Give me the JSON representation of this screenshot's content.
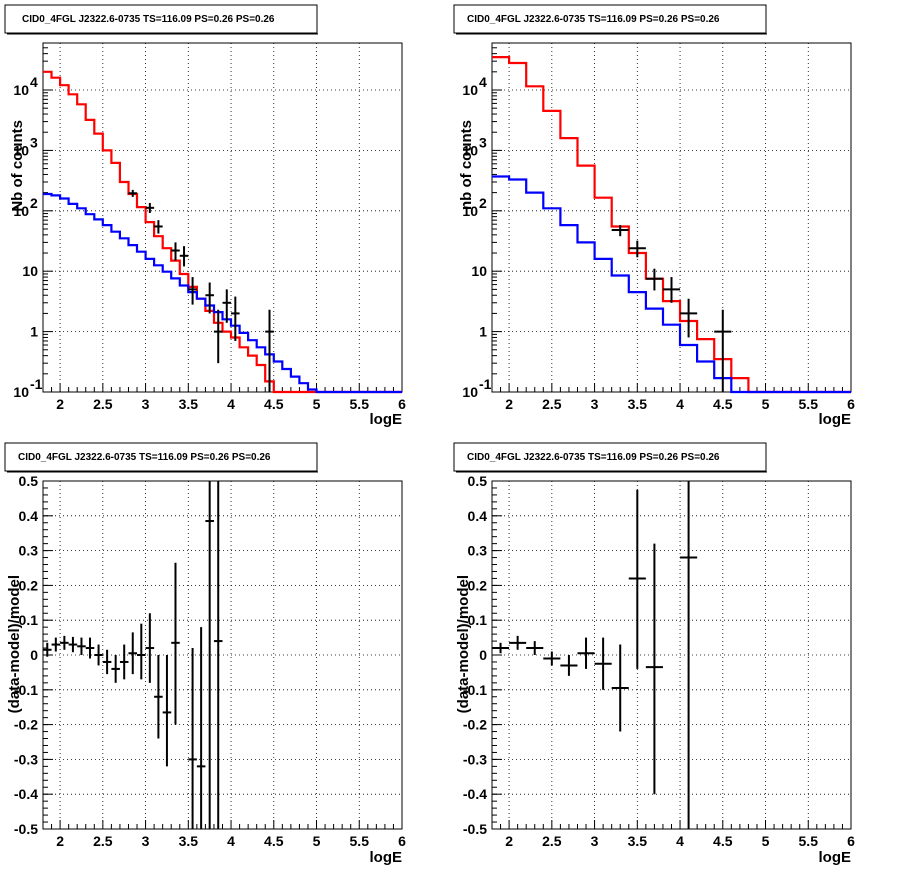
{
  "chart_data": [
    {
      "type": "line",
      "title": "CID0_4FGL J2322.6-0735 TS=116.09 PS=0.26 PS=0.26",
      "xlabel": "logE",
      "ylabel": "Nb of counts",
      "xlim": [
        1.8,
        6.0
      ],
      "ylim": [
        0.1,
        60000
      ],
      "yscale": "log",
      "grid": true,
      "xticks": [
        "2",
        "2.5",
        "3",
        "3.5",
        "4",
        "4.5",
        "5",
        "5.5",
        "6"
      ],
      "yticks": [
        "10^-1",
        "1",
        "10",
        "10^2",
        "10^3",
        "10^4"
      ],
      "bin_edges": [
        1.8,
        1.9,
        2.0,
        2.1,
        2.2,
        2.3,
        2.4,
        2.5,
        2.6,
        2.7,
        2.8,
        2.9,
        3.0,
        3.1,
        3.2,
        3.3,
        3.4,
        3.5,
        3.6,
        3.7,
        3.8,
        3.9,
        4.0,
        4.1,
        4.2,
        4.3,
        4.4,
        4.5,
        4.6,
        4.7,
        4.8,
        4.9,
        5.0,
        5.1,
        5.2,
        5.3,
        5.4,
        5.5,
        5.6,
        5.7,
        5.8,
        5.9,
        6.0
      ],
      "series": [
        {
          "role": "total-model",
          "color": "#ff0000",
          "values": [
            20000,
            16000,
            12000,
            8500,
            5800,
            3200,
            1900,
            1000,
            620,
            300,
            190,
            115,
            65,
            38,
            24,
            15,
            9,
            5.5,
            3.5,
            2.2,
            1.4,
            1.0,
            0.8,
            0.55,
            0.4,
            0.28,
            0.15,
            0.1,
            0.1,
            0.1,
            0.1,
            0.1,
            0.1,
            0.1,
            0.1,
            0.1,
            0.1,
            0.1,
            0.1,
            0.1,
            0.1,
            0.1
          ]
        },
        {
          "role": "background-model",
          "color": "#0000ff",
          "values": [
            190,
            180,
            160,
            130,
            110,
            88,
            72,
            58,
            45,
            35,
            27,
            21,
            16,
            12.5,
            9.8,
            7.6,
            5.8,
            4.5,
            3.5,
            2.7,
            2.1,
            1.6,
            1.25,
            0.95,
            0.72,
            0.55,
            0.42,
            0.32,
            0.24,
            0.18,
            0.14,
            0.11,
            0.1,
            0.1,
            0.1,
            0.1,
            0.1,
            0.1,
            0.1,
            0.1,
            0.1,
            0.1
          ]
        },
        {
          "role": "data",
          "color": "#000000",
          "points": [
            {
              "x": 2.85,
              "y": 195,
              "lo": 170,
              "hi": 222
            },
            {
              "x": 3.05,
              "y": 112,
              "lo": 92,
              "hi": 135
            },
            {
              "x": 3.15,
              "y": 55,
              "lo": 42,
              "hi": 70
            },
            {
              "x": 3.35,
              "y": 22,
              "lo": 15,
              "hi": 30
            },
            {
              "x": 3.45,
              "y": 18,
              "lo": 12,
              "hi": 26
            },
            {
              "x": 3.55,
              "y": 5,
              "lo": 2.8,
              "hi": 8
            },
            {
              "x": 3.75,
              "y": 4,
              "lo": 2,
              "hi": 6.5
            },
            {
              "x": 3.85,
              "y": 1.0,
              "lo": 0.3,
              "hi": 2.3
            },
            {
              "x": 3.95,
              "y": 3,
              "lo": 1.4,
              "hi": 5
            },
            {
              "x": 4.05,
              "y": 2,
              "lo": 0.7,
              "hi": 3.8
            },
            {
              "x": 4.45,
              "y": 1,
              "lo": 0.1,
              "hi": 2.3
            }
          ]
        }
      ]
    },
    {
      "type": "line",
      "title": "CID0_4FGL J2322.6-0735 TS=116.09 PS=0.26 PS=0.26",
      "xlabel": "logE",
      "ylabel": "nb of counts",
      "xlim": [
        1.8,
        6.0
      ],
      "ylim": [
        0.1,
        60000
      ],
      "yscale": "log",
      "grid": true,
      "xticks": [
        "2",
        "2.5",
        "3",
        "3.5",
        "4",
        "4.5",
        "5",
        "5.5",
        "6"
      ],
      "yticks": [
        "10^-1",
        "1",
        "10",
        "10^2",
        "10^3",
        "10^4"
      ],
      "bin_edges": [
        1.8,
        2.0,
        2.2,
        2.4,
        2.6,
        2.8,
        3.0,
        3.2,
        3.4,
        3.6,
        3.8,
        4.0,
        4.2,
        4.4,
        4.6,
        4.8,
        5.0,
        5.2,
        5.4,
        5.6,
        5.8,
        6.0
      ],
      "series": [
        {
          "role": "total-model",
          "color": "#ff0000",
          "values": [
            35000,
            28000,
            11500,
            4500,
            1600,
            560,
            165,
            55,
            20,
            7.5,
            3.2,
            1.5,
            0.75,
            0.35,
            0.17,
            0.1,
            0.1,
            0.1,
            0.1,
            0.1,
            0.1
          ]
        },
        {
          "role": "background-model",
          "color": "#0000ff",
          "values": [
            370,
            330,
            200,
            110,
            58,
            30,
            16,
            8.5,
            4.5,
            2.4,
            1.3,
            0.6,
            0.32,
            0.17,
            0.1,
            0.1,
            0.1,
            0.1,
            0.1,
            0.1,
            0.1
          ]
        },
        {
          "role": "data",
          "color": "#000000",
          "points": [
            {
              "x": 3.3,
              "y": 48,
              "lo": 38,
              "hi": 58
            },
            {
              "x": 3.5,
              "y": 24,
              "lo": 17,
              "hi": 32
            },
            {
              "x": 3.7,
              "y": 7.5,
              "lo": 4.8,
              "hi": 11
            },
            {
              "x": 3.9,
              "y": 5,
              "lo": 3,
              "hi": 8
            },
            {
              "x": 4.1,
              "y": 2,
              "lo": 0.8,
              "hi": 3.5
            },
            {
              "x": 4.5,
              "y": 1,
              "lo": 0.1,
              "hi": 2.3
            }
          ]
        }
      ]
    },
    {
      "type": "scatter",
      "title": "CID0_4FGL J2322.6-0735 TS=116.09 PS=0.26 PS=0.26",
      "xlabel": "logE",
      "ylabel": "(data-model)/model",
      "xlim": [
        1.8,
        6.0
      ],
      "ylim": [
        -0.5,
        0.5
      ],
      "grid": true,
      "xticks": [
        "2",
        "2.5",
        "3",
        "3.5",
        "4",
        "4.5",
        "5",
        "5.5",
        "6"
      ],
      "yticks": [
        "-0.5",
        "-0.4",
        "-0.3",
        "-0.2",
        "-0.1",
        "0",
        "0.1",
        "0.2",
        "0.3",
        "0.4",
        "0.5"
      ],
      "points": [
        {
          "x": 1.85,
          "y": 0.015,
          "lo": -0.005,
          "hi": 0.035
        },
        {
          "x": 1.95,
          "y": 0.03,
          "lo": 0.01,
          "hi": 0.05
        },
        {
          "x": 2.05,
          "y": 0.035,
          "lo": 0.015,
          "hi": 0.055
        },
        {
          "x": 2.15,
          "y": 0.03,
          "lo": 0.008,
          "hi": 0.052
        },
        {
          "x": 2.25,
          "y": 0.025,
          "lo": 0.0,
          "hi": 0.05
        },
        {
          "x": 2.35,
          "y": 0.02,
          "lo": -0.01,
          "hi": 0.05
        },
        {
          "x": 2.45,
          "y": 0.0,
          "lo": -0.03,
          "hi": 0.03
        },
        {
          "x": 2.55,
          "y": -0.02,
          "lo": -0.055,
          "hi": 0.015
        },
        {
          "x": 2.65,
          "y": -0.04,
          "lo": -0.08,
          "hi": 0.0
        },
        {
          "x": 2.75,
          "y": -0.02,
          "lo": -0.07,
          "hi": 0.03
        },
        {
          "x": 2.85,
          "y": 0.005,
          "lo": -0.055,
          "hi": 0.065
        },
        {
          "x": 2.95,
          "y": 0.0,
          "lo": -0.07,
          "hi": 0.09
        },
        {
          "x": 3.05,
          "y": 0.02,
          "lo": -0.08,
          "hi": 0.12
        },
        {
          "x": 3.15,
          "y": -0.12,
          "lo": -0.24,
          "hi": 0.0
        },
        {
          "x": 3.25,
          "y": -0.165,
          "lo": -0.32,
          "hi": 0.0
        },
        {
          "x": 3.35,
          "y": 0.035,
          "lo": -0.2,
          "hi": 0.265
        },
        {
          "x": 3.55,
          "y": -0.3,
          "lo": -0.5,
          "hi": 0.02
        },
        {
          "x": 3.65,
          "y": -0.32,
          "lo": -0.5,
          "hi": 0.08
        },
        {
          "x": 3.75,
          "y": 0.385,
          "lo": -0.5,
          "hi": 0.5
        },
        {
          "x": 3.85,
          "y": 0.04,
          "lo": -0.5,
          "hi": 0.5
        }
      ]
    },
    {
      "type": "scatter",
      "title": "CID0_4FGL J2322.6-0735 TS=116.09 PS=0.26 PS=0.26",
      "xlabel": "logE",
      "ylabel": "(data-model)/model",
      "xlim": [
        1.8,
        6.0
      ],
      "ylim": [
        -0.5,
        0.5
      ],
      "grid": true,
      "xticks": [
        "2",
        "2.5",
        "3",
        "3.5",
        "4",
        "4.5",
        "5",
        "5.5",
        "6"
      ],
      "yticks": [
        "-0.5",
        "-0.4",
        "-0.3",
        "-0.2",
        "-0.1",
        "0",
        "0.1",
        "0.2",
        "0.3",
        "0.4",
        "0.5"
      ],
      "points": [
        {
          "x": 1.9,
          "y": 0.02,
          "lo": 0.005,
          "hi": 0.035
        },
        {
          "x": 2.1,
          "y": 0.035,
          "lo": 0.015,
          "hi": 0.055
        },
        {
          "x": 2.3,
          "y": 0.02,
          "lo": 0.0,
          "hi": 0.04
        },
        {
          "x": 2.5,
          "y": -0.01,
          "lo": -0.03,
          "hi": 0.01
        },
        {
          "x": 2.7,
          "y": -0.03,
          "lo": -0.06,
          "hi": 0.0
        },
        {
          "x": 2.9,
          "y": 0.005,
          "lo": -0.04,
          "hi": 0.05
        },
        {
          "x": 3.1,
          "y": -0.025,
          "lo": -0.1,
          "hi": 0.05
        },
        {
          "x": 3.3,
          "y": -0.095,
          "lo": -0.22,
          "hi": 0.03
        },
        {
          "x": 3.5,
          "y": 0.22,
          "lo": -0.04,
          "hi": 0.475
        },
        {
          "x": 3.7,
          "y": -0.035,
          "lo": -0.4,
          "hi": 0.32
        },
        {
          "x": 4.1,
          "y": 0.28,
          "lo": -0.5,
          "hi": 0.5
        }
      ]
    }
  ]
}
